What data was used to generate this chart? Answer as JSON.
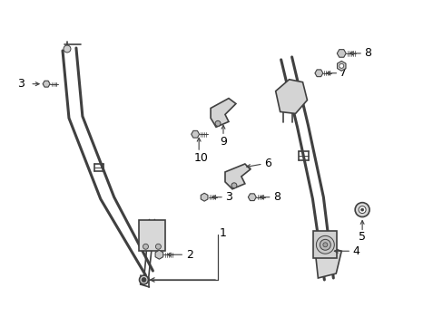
{
  "bg_color": "#ffffff",
  "line_color": "#404040",
  "label_color": "#000000",
  "figsize": [
    4.89,
    3.6
  ],
  "dpi": 100,
  "lw_strap": 2.2,
  "lw_part": 1.2,
  "lw_thin": 0.7,
  "lw_arrow": 0.8,
  "fontsize": 8.5
}
